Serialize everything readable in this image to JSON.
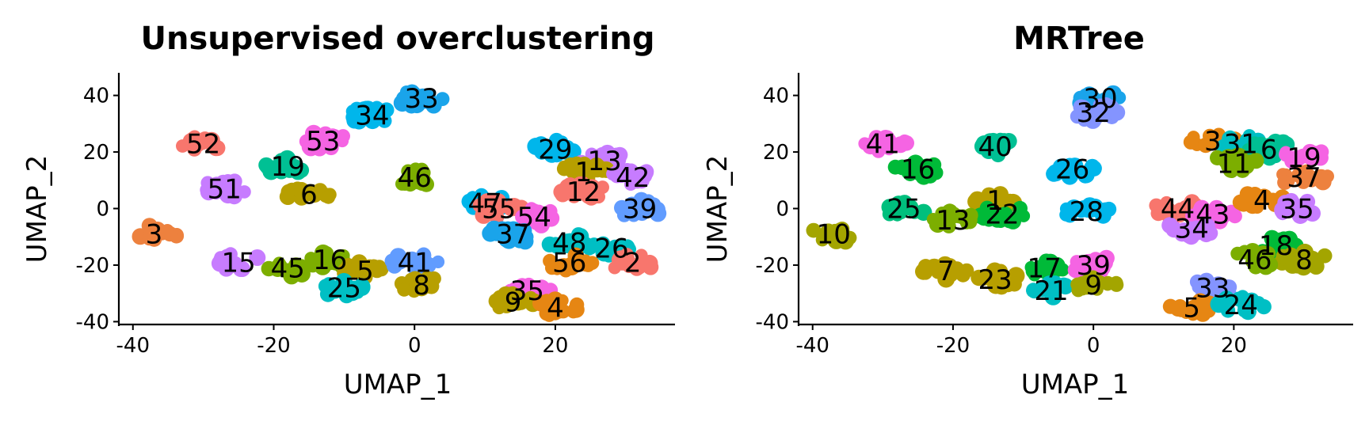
{
  "chart_data": [
    {
      "type": "scatter",
      "title": "Unsupervised overclustering",
      "xlabel": "UMAP_1",
      "ylabel": "UMAP_2",
      "xlim": [
        -42,
        37
      ],
      "ylim": [
        -41,
        48
      ],
      "xticks": [
        -40,
        -20,
        0,
        20
      ],
      "yticks": [
        -40,
        -20,
        0,
        20,
        40
      ],
      "xtick_labels": [
        "-40",
        "-20",
        "0",
        "20"
      ],
      "ytick_labels": [
        "-40",
        "-20",
        "0",
        "20",
        "40"
      ],
      "grid": false,
      "clusters": [
        {
          "label": "33",
          "x": 1,
          "y": 39,
          "color": "#1AA4EA"
        },
        {
          "label": "34",
          "x": -6,
          "y": 33,
          "color": "#00B6EB"
        },
        {
          "label": "53",
          "x": -13,
          "y": 24,
          "color": "#F564E3"
        },
        {
          "label": "52",
          "x": -30,
          "y": 23,
          "color": "#F8766D"
        },
        {
          "label": "19",
          "x": -18,
          "y": 15,
          "color": "#00C094"
        },
        {
          "label": "46",
          "x": 0,
          "y": 11,
          "color": "#7CAE00"
        },
        {
          "label": "51",
          "x": -27,
          "y": 7,
          "color": "#C77CFF"
        },
        {
          "label": "6",
          "x": -15,
          "y": 5,
          "color": "#B79F00"
        },
        {
          "label": "3",
          "x": -37,
          "y": -9,
          "color": "#ED813E"
        },
        {
          "label": "29",
          "x": 20,
          "y": 21,
          "color": "#00B6EB"
        },
        {
          "label": "13",
          "x": 27,
          "y": 17,
          "color": "#C77CFF"
        },
        {
          "label": "1",
          "x": 24,
          "y": 13,
          "color": "#B79F00"
        },
        {
          "label": "42",
          "x": 31,
          "y": 11,
          "color": "#C77CFF"
        },
        {
          "label": "47",
          "x": 10,
          "y": 2,
          "color": "#00B6EB"
        },
        {
          "label": "12",
          "x": 24,
          "y": 6,
          "color": "#F8766D"
        },
        {
          "label": "39",
          "x": 32,
          "y": 0,
          "color": "#619CFF"
        },
        {
          "label": "55",
          "x": 12,
          "y": 0,
          "color": "#F8766D"
        },
        {
          "label": "54",
          "x": 17,
          "y": -3,
          "color": "#F564E3"
        },
        {
          "label": "37",
          "x": 14,
          "y": -9,
          "color": "#1AA4EA"
        },
        {
          "label": "48",
          "x": 22,
          "y": -12,
          "color": "#00BFC4"
        },
        {
          "label": "26",
          "x": 28,
          "y": -14,
          "color": "#00BFC4"
        },
        {
          "label": "2",
          "x": 31,
          "y": -19,
          "color": "#F8766D"
        },
        {
          "label": "56",
          "x": 22,
          "y": -19,
          "color": "#E68613"
        },
        {
          "label": "35",
          "x": 16,
          "y": -29,
          "color": "#F564E3"
        },
        {
          "label": "9",
          "x": 14,
          "y": -33,
          "color": "#B79F00"
        },
        {
          "label": "4",
          "x": 20,
          "y": -35,
          "color": "#E68613"
        },
        {
          "label": "15",
          "x": -25,
          "y": -19,
          "color": "#C77CFF"
        },
        {
          "label": "45",
          "x": -18,
          "y": -21,
          "color": "#7CAE00"
        },
        {
          "label": "16",
          "x": -12,
          "y": -18,
          "color": "#7CAE00"
        },
        {
          "label": "5",
          "x": -7,
          "y": -22,
          "color": "#B79F00"
        },
        {
          "label": "41",
          "x": 0,
          "y": -19,
          "color": "#619CFF"
        },
        {
          "label": "25",
          "x": -10,
          "y": -28,
          "color": "#00BFC4"
        },
        {
          "label": "8",
          "x": 1,
          "y": -27,
          "color": "#B79F00"
        }
      ]
    },
    {
      "type": "scatter",
      "title": "MRTree",
      "xlabel": "UMAP_1",
      "ylabel": "UMAP_2",
      "xlim": [
        -42,
        37
      ],
      "ylim": [
        -41,
        48
      ],
      "xticks": [
        -40,
        -20,
        0,
        20
      ],
      "yticks": [
        -40,
        -20,
        0,
        20,
        40
      ],
      "xtick_labels": [
        "-40",
        "-20",
        "0",
        "20"
      ],
      "ytick_labels": [
        "-40",
        "-20",
        "0",
        "20",
        "40"
      ],
      "grid": false,
      "clusters": [
        {
          "label": "30",
          "x": 1,
          "y": 39,
          "color": "#1AA4EA"
        },
        {
          "label": "32",
          "x": 0,
          "y": 34,
          "color": "#8494FF"
        },
        {
          "label": "41",
          "x": -30,
          "y": 23,
          "color": "#F564E3"
        },
        {
          "label": "40",
          "x": -14,
          "y": 22,
          "color": "#00C094"
        },
        {
          "label": "16",
          "x": -25,
          "y": 14,
          "color": "#00BA38"
        },
        {
          "label": "26",
          "x": -3,
          "y": 14,
          "color": "#00B6EB"
        },
        {
          "label": "25",
          "x": -27,
          "y": 0,
          "color": "#00BF7D"
        },
        {
          "label": "1",
          "x": -14,
          "y": 3,
          "color": "#B79F00"
        },
        {
          "label": "22",
          "x": -13,
          "y": -2,
          "color": "#00BA38"
        },
        {
          "label": "13",
          "x": -20,
          "y": -4,
          "color": "#7CAE00"
        },
        {
          "label": "28",
          "x": -1,
          "y": -1,
          "color": "#00B6EB"
        },
        {
          "label": "10",
          "x": -37,
          "y": -9,
          "color": "#A3A500"
        },
        {
          "label": "3",
          "x": 17,
          "y": 24,
          "color": "#E68613"
        },
        {
          "label": "31",
          "x": 21,
          "y": 23,
          "color": "#00BFC4"
        },
        {
          "label": "6",
          "x": 25,
          "y": 21,
          "color": "#00C094"
        },
        {
          "label": "19",
          "x": 30,
          "y": 18,
          "color": "#F564E3"
        },
        {
          "label": "11",
          "x": 20,
          "y": 16,
          "color": "#7CAE00"
        },
        {
          "label": "37",
          "x": 30,
          "y": 11,
          "color": "#ED813E"
        },
        {
          "label": "44",
          "x": 12,
          "y": 0,
          "color": "#F8766D"
        },
        {
          "label": "43",
          "x": 17,
          "y": -2,
          "color": "#F564E3"
        },
        {
          "label": "4",
          "x": 24,
          "y": 3,
          "color": "#E68613"
        },
        {
          "label": "35",
          "x": 29,
          "y": 0,
          "color": "#C77CFF"
        },
        {
          "label": "34",
          "x": 14,
          "y": -7,
          "color": "#C77CFF"
        },
        {
          "label": "18",
          "x": 26,
          "y": -13,
          "color": "#00BA38"
        },
        {
          "label": "8",
          "x": 30,
          "y": -18,
          "color": "#A3A500"
        },
        {
          "label": "46",
          "x": 23,
          "y": -18,
          "color": "#7CAE00"
        },
        {
          "label": "33",
          "x": 17,
          "y": -28,
          "color": "#8494FF"
        },
        {
          "label": "5",
          "x": 14,
          "y": -35,
          "color": "#E68613"
        },
        {
          "label": "24",
          "x": 21,
          "y": -34,
          "color": "#00BFC4"
        },
        {
          "label": "7",
          "x": -21,
          "y": -22,
          "color": "#B79F00"
        },
        {
          "label": "23",
          "x": -14,
          "y": -25,
          "color": "#B79F00"
        },
        {
          "label": "17",
          "x": -7,
          "y": -21,
          "color": "#00BA38"
        },
        {
          "label": "39",
          "x": 0,
          "y": -20,
          "color": "#F564E3"
        },
        {
          "label": "21",
          "x": -6,
          "y": -29,
          "color": "#00BFC4"
        },
        {
          "label": "9",
          "x": 0,
          "y": -27,
          "color": "#A3A500"
        }
      ]
    }
  ]
}
